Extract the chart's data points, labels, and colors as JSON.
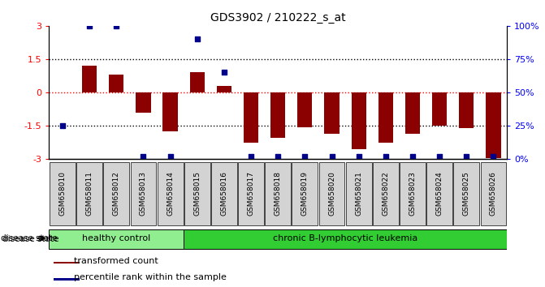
{
  "title": "GDS3902 / 210222_s_at",
  "samples": [
    "GSM658010",
    "GSM658011",
    "GSM658012",
    "GSM658013",
    "GSM658014",
    "GSM658015",
    "GSM658016",
    "GSM658017",
    "GSM658018",
    "GSM658019",
    "GSM658020",
    "GSM658021",
    "GSM658022",
    "GSM658023",
    "GSM658024",
    "GSM658025",
    "GSM658026"
  ],
  "transformed_count": [
    0.0,
    1.2,
    0.8,
    -0.9,
    -1.75,
    0.9,
    0.3,
    -2.25,
    -2.05,
    -1.55,
    -1.85,
    -2.55,
    -2.25,
    -1.85,
    -1.5,
    -1.6,
    -2.95
  ],
  "percentile_rank": [
    25,
    100,
    100,
    2,
    2,
    90,
    65,
    2,
    2,
    2,
    2,
    2,
    2,
    2,
    2,
    2,
    2
  ],
  "bar_color": "#8B0000",
  "dot_color": "#00008B",
  "healthy_control_count": 5,
  "ylim_left": [
    -3,
    3
  ],
  "ylim_right": [
    0,
    100
  ],
  "yticks_left": [
    -3,
    -1.5,
    0,
    1.5,
    3
  ],
  "ytick_labels_left": [
    "-3",
    "-1.5",
    "0",
    "1.5",
    "3"
  ],
  "yticks_right": [
    0,
    25,
    50,
    75,
    100
  ],
  "ytick_labels_right": [
    "0%",
    "25%",
    "50%",
    "75%",
    "100%"
  ],
  "dotted_lines": [
    -1.5,
    1.5
  ],
  "bg_color": "#ffffff",
  "healthy_color": "#90EE90",
  "leukemia_color": "#32CD32",
  "group_label": "disease state",
  "healthy_label": "healthy control",
  "leukemia_label": "chronic B-lymphocytic leukemia",
  "legend_bar_label": "transformed count",
  "legend_dot_label": "percentile rank within the sample",
  "bar_color_legend": "#cc0000",
  "dot_color_legend": "#0000cc"
}
